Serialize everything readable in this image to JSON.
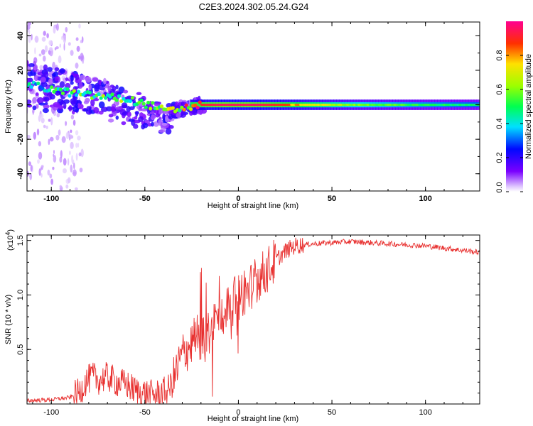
{
  "title": "C2E3.2024.302.05.24.G24",
  "chart_data": [
    {
      "type": "heatmap",
      "title": "C2E3.2024.302.05.24.G24",
      "xlabel": "Height of straight line (km)",
      "ylabel": "Frequency (Hz)",
      "xlim": [
        -113,
        129
      ],
      "ylim": [
        -50,
        48
      ],
      "xticks": [
        -100,
        -50,
        0,
        50,
        100
      ],
      "xtick_labels": [
        "-100",
        "-50",
        "0",
        "50",
        "100"
      ],
      "yticks": [
        -40,
        -20,
        0,
        20,
        40
      ],
      "ytick_labels": [
        "-40",
        "-20",
        "0",
        "20",
        "40"
      ],
      "colorbar": {
        "label": "Normalized spectral amplitude",
        "range": [
          0,
          1
        ],
        "ticks": [
          0,
          0.2,
          0.4,
          0.6,
          0.8
        ],
        "tick_labels": [
          "0.0",
          "0.2",
          "0.4",
          "0.6",
          "0.8"
        ]
      },
      "ridge": {
        "description": "dominant frequency track",
        "x": [
          -112,
          -105,
          -95,
          -85,
          -75,
          -65,
          -55,
          -45,
          -38,
          -30,
          -25,
          -20,
          -10,
          0,
          10,
          30,
          60,
          100,
          129
        ],
        "freq": [
          12,
          10,
          8,
          6,
          5,
          4,
          2,
          -1,
          -4,
          -2,
          -1,
          0,
          0,
          0,
          0,
          0,
          0,
          0,
          0
        ],
        "amplitude": [
          0.4,
          0.45,
          0.5,
          0.55,
          0.6,
          0.6,
          0.6,
          0.65,
          0.7,
          0.75,
          0.85,
          0.9,
          0.95,
          0.95,
          0.95,
          0.85,
          0.65,
          0.55,
          0.5
        ]
      }
    },
    {
      "type": "line",
      "title": "",
      "xlabel": "Height of straight line (km)",
      "ylabel": "SNR (10 * v/v)",
      "y_exponent_label": "(x10",
      "y_exponent_power": "4",
      "y_exponent_close": ")",
      "xlim": [
        -113,
        129
      ],
      "ylim": [
        0,
        1.55
      ],
      "xticks": [
        -100,
        -50,
        0,
        50,
        100
      ],
      "xtick_labels": [
        "-100",
        "-50",
        "0",
        "50",
        "100"
      ],
      "yticks": [
        0.5,
        1.0,
        1.5
      ],
      "ytick_labels": [
        "0.5",
        "1.0",
        "1.5"
      ],
      "series": [
        {
          "name": "SNR",
          "color": "#e8302f",
          "x": [
            -113,
            -100,
            -90,
            -85,
            -82,
            -78,
            -74,
            -70,
            -65,
            -60,
            -55,
            -50,
            -45,
            -42,
            -38,
            -35,
            -32,
            -30,
            -28,
            -25,
            -22,
            -20,
            -18,
            -15,
            -12,
            -10,
            -5,
            0,
            5,
            10,
            15,
            20,
            25,
            30,
            40,
            50,
            60,
            70,
            80,
            90,
            100,
            110,
            120,
            129
          ],
          "values": [
            0.03,
            0.04,
            0.06,
            0.1,
            0.2,
            0.25,
            0.22,
            0.25,
            0.2,
            0.18,
            0.12,
            0.1,
            0.08,
            0.1,
            0.12,
            0.2,
            0.35,
            0.45,
            0.5,
            0.55,
            0.62,
            0.6,
            0.58,
            0.68,
            0.78,
            0.8,
            0.9,
            0.98,
            1.05,
            1.15,
            1.22,
            1.32,
            1.4,
            1.45,
            1.47,
            1.48,
            1.49,
            1.48,
            1.47,
            1.46,
            1.45,
            1.43,
            1.41,
            1.39
          ]
        }
      ]
    }
  ]
}
